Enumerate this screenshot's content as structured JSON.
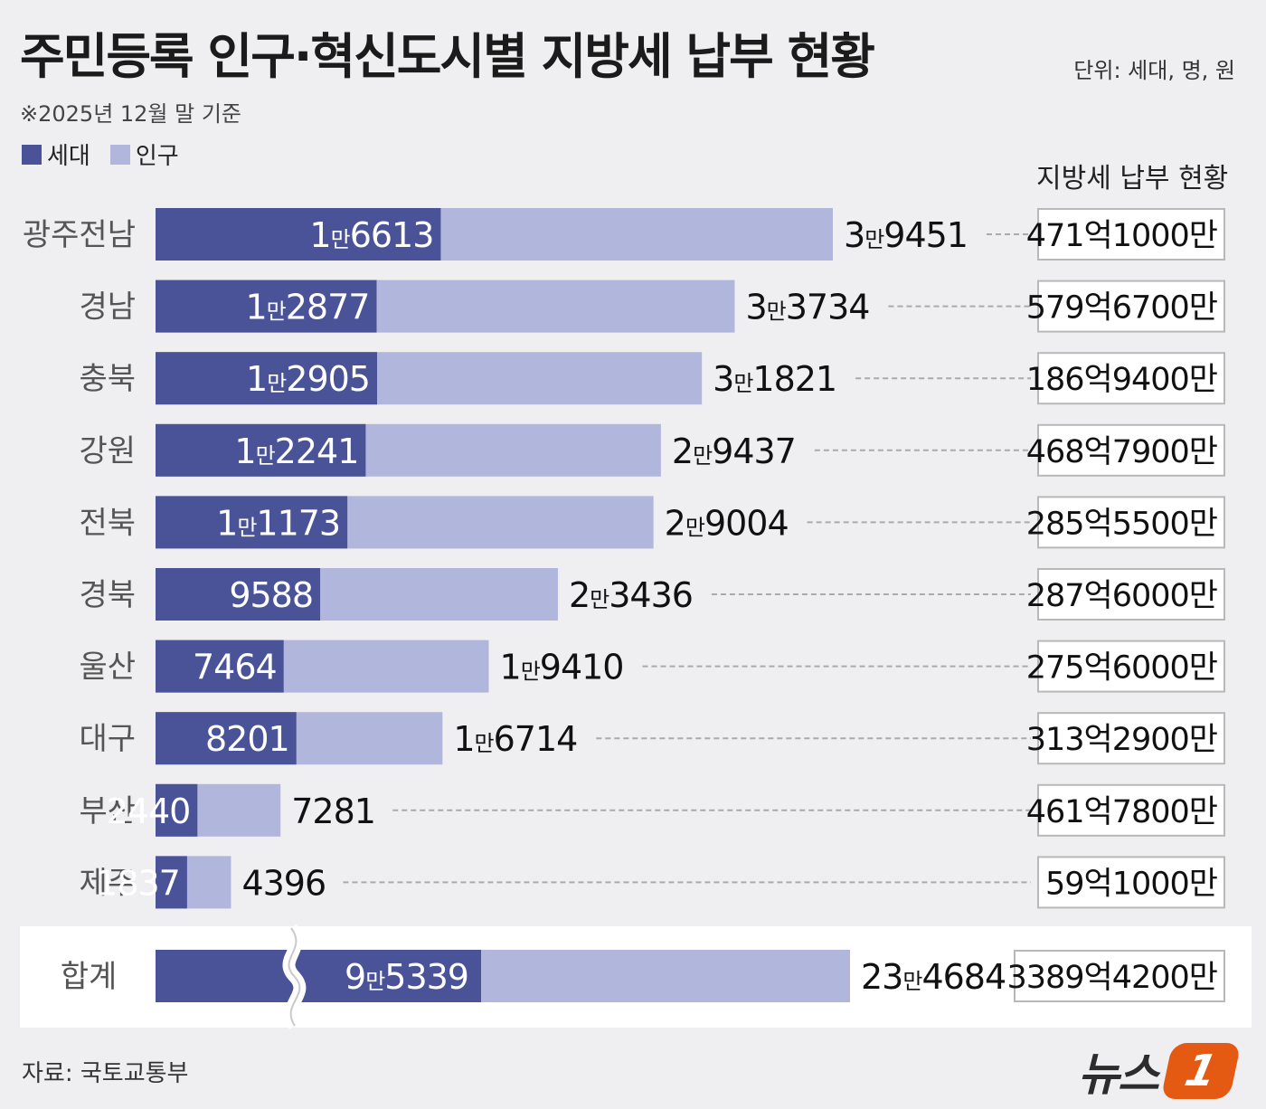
{
  "title": "주민등록 인구·혁신도시별 지방세 납부 현황",
  "unit": "단위: 세대, 명, 원",
  "subtitle": "※2025년 12월 말 기준",
  "legend": {
    "households": "세대",
    "population": "인구"
  },
  "tax_header": "지방세 납부 현황",
  "source": "자료: 국토교통부",
  "logo": {
    "text": "뉴스",
    "badge": "1"
  },
  "colors": {
    "households": "#4a5398",
    "population": "#b1b6dd",
    "background": "#efeff1"
  },
  "chart_data": {
    "type": "bar",
    "orientation": "horizontal",
    "stacked_overlay": true,
    "categories": [
      "광주전남",
      "경남",
      "충북",
      "강원",
      "전북",
      "경북",
      "울산",
      "대구",
      "부산",
      "제주"
    ],
    "series": [
      {
        "name": "세대",
        "values": [
          16613,
          12877,
          12905,
          12241,
          11173,
          9588,
          7464,
          8201,
          2440,
          1837
        ],
        "labels": [
          "1만6613",
          "1만2877",
          "1만2905",
          "1만2241",
          "1만1173",
          "9588",
          "7464",
          "8201",
          "2440",
          "1837"
        ]
      },
      {
        "name": "인구",
        "values": [
          39451,
          33734,
          31821,
          29437,
          29004,
          23436,
          19410,
          16714,
          7281,
          4396
        ],
        "labels": [
          "3만9451",
          "3만3734",
          "3만1821",
          "2만9437",
          "2만9004",
          "2만3436",
          "1만9410",
          "1만6714",
          "7281",
          "4396"
        ]
      }
    ],
    "tax_payment": [
      "471억1000만",
      "579억6700만",
      "186억9400만",
      "468억7900만",
      "285억5500만",
      "287억6000만",
      "275억6000만",
      "313억2900만",
      "461억7800만",
      "59억1000만"
    ],
    "total": {
      "label": "합계",
      "households": 95339,
      "households_label": "9만5339",
      "population": 234684,
      "population_label": "23만4684",
      "tax_payment": "3389억4200만",
      "axis_break": true
    },
    "xlim": [
      0,
      39451
    ]
  }
}
